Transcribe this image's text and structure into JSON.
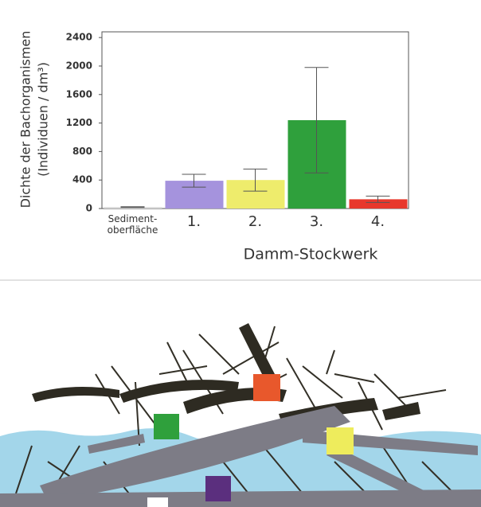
{
  "chart_data": {
    "type": "bar",
    "ylabel": [
      "Dichte der Bachorganismen",
      "(Individuen / dm³)"
    ],
    "xlabel": "Damm-Stockwerk",
    "categories": [
      "Sediment-\noberfläche",
      "1.",
      "2.",
      "3.",
      "4."
    ],
    "values": [
      20,
      390,
      400,
      1240,
      130
    ],
    "errors": [
      5,
      90,
      155,
      740,
      45
    ],
    "colors": [
      "#d8d8d8",
      "#a593dd",
      "#eeec6c",
      "#2fa03c",
      "#e8382c"
    ],
    "ylim": [
      0,
      2480
    ],
    "yticks": [
      0,
      400,
      800,
      1200,
      1600,
      2000,
      2400
    ]
  }
}
